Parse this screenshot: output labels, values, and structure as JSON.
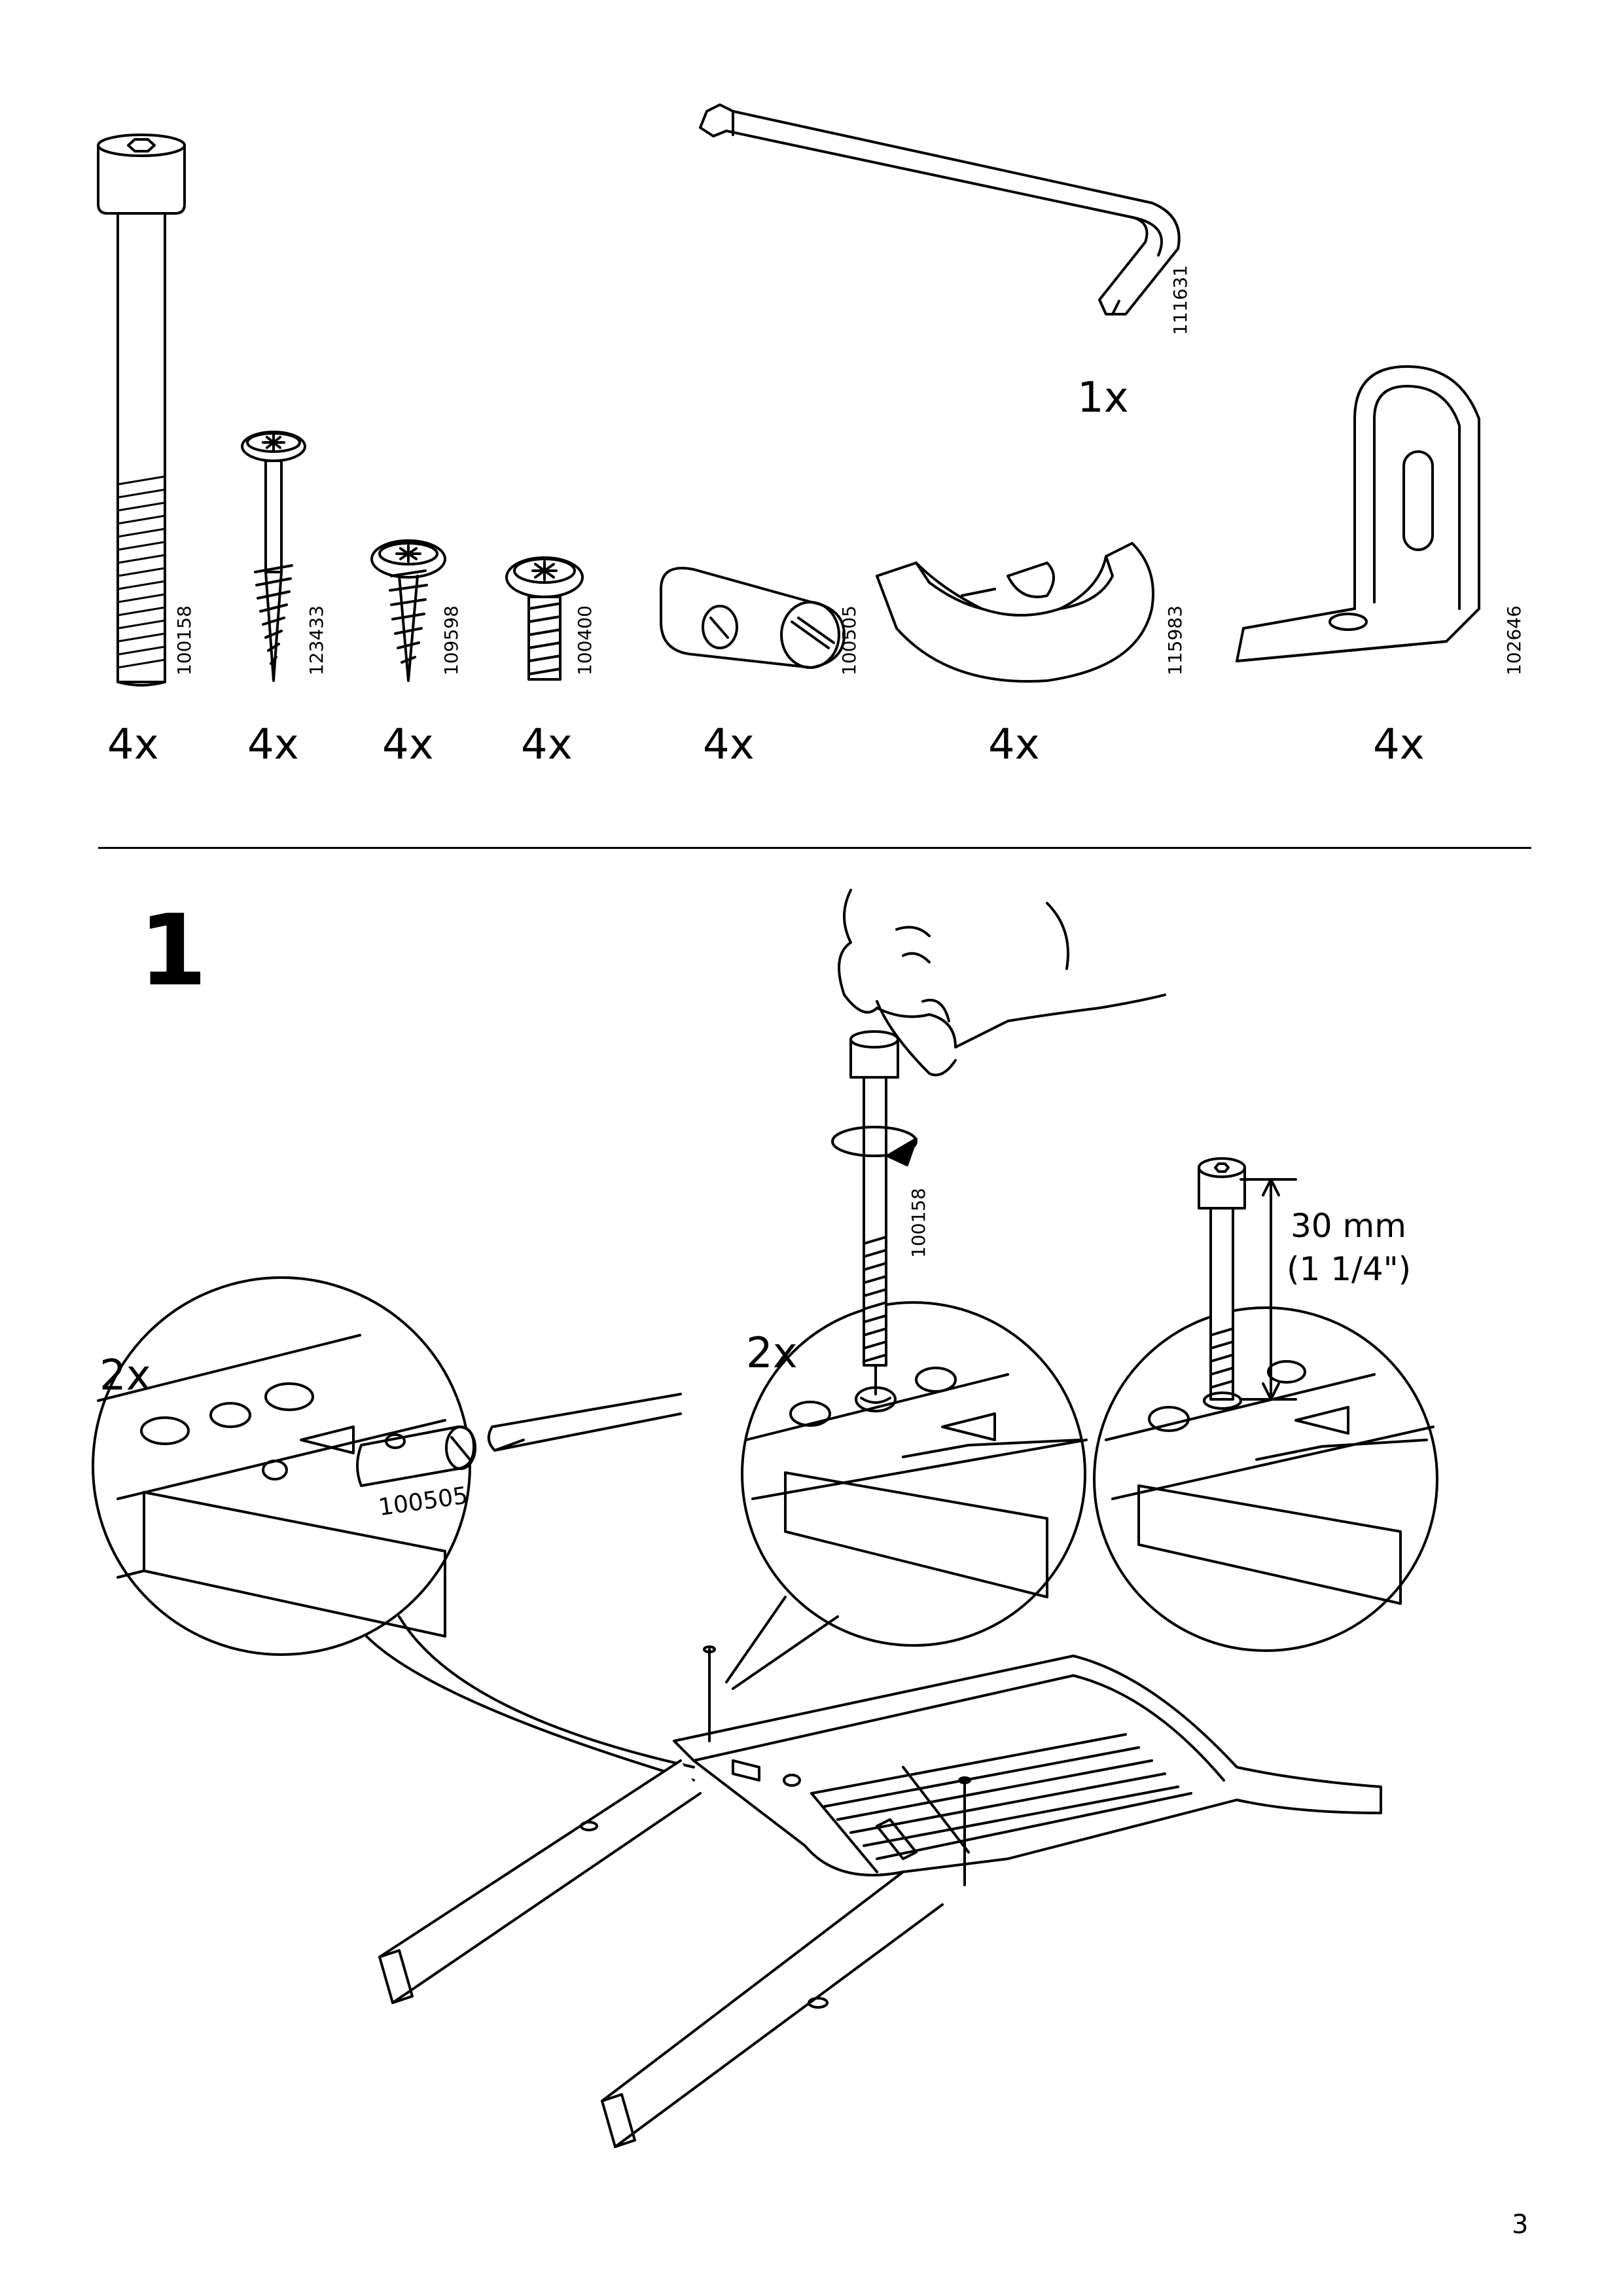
{
  "page_number": "3",
  "parts": [
    {
      "id": "bolt-long",
      "code": "100158",
      "qty": "4x",
      "icon": "long-hex-bolt-icon"
    },
    {
      "id": "wood-screw-long",
      "code": "123433",
      "qty": "4x",
      "icon": "wood-screw-icon"
    },
    {
      "id": "wood-screw-short",
      "code": "109598",
      "qty": "4x",
      "icon": "short-screw-icon"
    },
    {
      "id": "machine-screw",
      "code": "100400",
      "qty": "4x",
      "icon": "machine-screw-icon"
    },
    {
      "id": "barrel-nut",
      "code": "100505",
      "qty": "4x",
      "icon": "barrel-nut-icon"
    },
    {
      "id": "bracket-clip",
      "code": "115983",
      "qty": "4x",
      "icon": "bracket-clip-icon"
    },
    {
      "id": "angle-bracket",
      "code": "102646",
      "qty": "4x",
      "icon": "angle-bracket-icon"
    },
    {
      "id": "allen-key",
      "code": "111631",
      "qty": "1x",
      "icon": "allen-key-icon"
    }
  ],
  "step": {
    "number": "1",
    "detail_left": {
      "qty": "2x",
      "part_code": "100505"
    },
    "detail_middle": {
      "qty": "2x",
      "part_code": "100158"
    },
    "measurement": {
      "metric": "30 mm",
      "imperial": "(1 1/4\")"
    }
  }
}
